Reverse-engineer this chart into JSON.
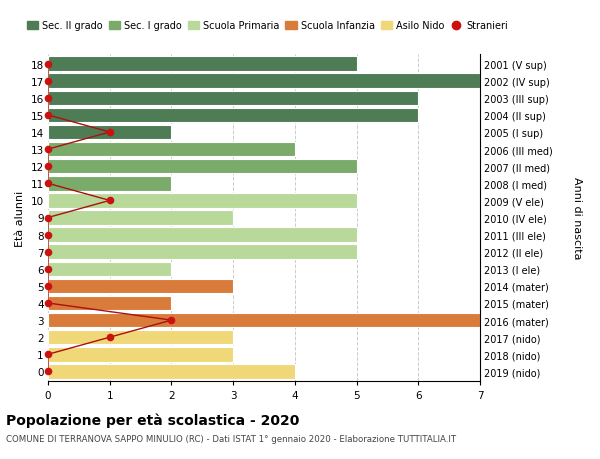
{
  "ages": [
    18,
    17,
    16,
    15,
    14,
    13,
    12,
    11,
    10,
    9,
    8,
    7,
    6,
    5,
    4,
    3,
    2,
    1,
    0
  ],
  "right_labels": [
    "2001 (V sup)",
    "2002 (IV sup)",
    "2003 (III sup)",
    "2004 (II sup)",
    "2005 (I sup)",
    "2006 (III med)",
    "2007 (II med)",
    "2008 (I med)",
    "2009 (V ele)",
    "2010 (IV ele)",
    "2011 (III ele)",
    "2012 (II ele)",
    "2013 (I ele)",
    "2014 (mater)",
    "2015 (mater)",
    "2016 (mater)",
    "2017 (nido)",
    "2018 (nido)",
    "2019 (nido)"
  ],
  "bar_values": [
    5,
    7,
    6,
    6,
    2,
    4,
    5,
    2,
    5,
    3,
    5,
    5,
    2,
    3,
    2,
    7,
    3,
    3,
    4
  ],
  "bar_colors": [
    "#4d7c55",
    "#4d7c55",
    "#4d7c55",
    "#4d7c55",
    "#4d7c55",
    "#7aab6a",
    "#7aab6a",
    "#7aab6a",
    "#b8d99a",
    "#b8d99a",
    "#b8d99a",
    "#b8d99a",
    "#b8d99a",
    "#d97b3a",
    "#d97b3a",
    "#d97b3a",
    "#f0d878",
    "#f0d878",
    "#f0d878"
  ],
  "stranieri_x": [
    0,
    0,
    0,
    0,
    1,
    0,
    0,
    0,
    1,
    0,
    0,
    0,
    0,
    0,
    0,
    2,
    1,
    0,
    0
  ],
  "title": "Popolazione per età scolastica - 2020",
  "subtitle": "COMUNE DI TERRANOVA SAPPO MINULIO (RC) - Dati ISTAT 1° gennaio 2020 - Elaborazione TUTTITALIA.IT",
  "ylabel_left": "Età alunni",
  "ylabel_right": "Anni di nascita",
  "xlim": [
    0,
    7
  ],
  "xticks": [
    0,
    1,
    2,
    3,
    4,
    5,
    6,
    7
  ],
  "legend_items": [
    {
      "label": "Sec. II grado",
      "color": "#4d7c55"
    },
    {
      "label": "Sec. I grado",
      "color": "#7aab6a"
    },
    {
      "label": "Scuola Primaria",
      "color": "#b8d99a"
    },
    {
      "label": "Scuola Infanzia",
      "color": "#d97b3a"
    },
    {
      "label": "Asilo Nido",
      "color": "#f0d878"
    },
    {
      "label": "Stranieri",
      "color": "#cc1111"
    }
  ],
  "bg_color": "#ffffff",
  "grid_color": "#cccccc",
  "bar_height": 0.85,
  "stranieri_line_color": "#aa1111",
  "stranieri_dot_color": "#cc1111"
}
